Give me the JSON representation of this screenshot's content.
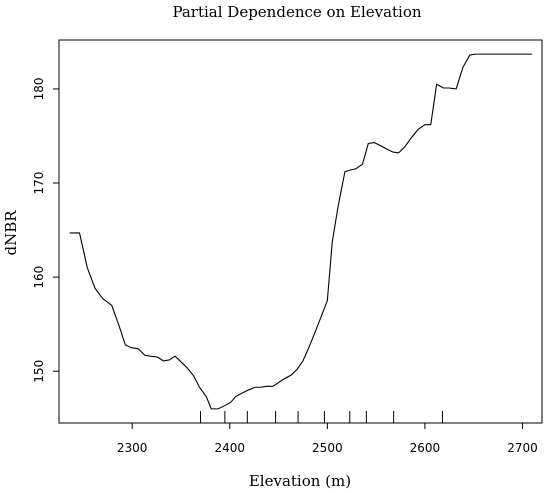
{
  "chart_data": {
    "type": "line",
    "title": "Partial Dependence on Elevation",
    "xlabel": "Elevation (m)",
    "ylabel": "dNBR",
    "xlim": [
      2225,
      2720
    ],
    "ylim": [
      144.5,
      185.2
    ],
    "xticks": [
      2300,
      2400,
      2500,
      2600,
      2700
    ],
    "yticks": [
      150,
      160,
      170,
      180
    ],
    "grid": false,
    "legend": "none",
    "series": [
      {
        "x": [
          2236,
          2246,
          2254,
          2262,
          2270,
          2279,
          2286,
          2293,
          2299,
          2306,
          2313,
          2319,
          2326,
          2332,
          2338,
          2344,
          2350,
          2356,
          2363,
          2369,
          2376,
          2381,
          2388,
          2394,
          2401,
          2406,
          2413,
          2419,
          2426,
          2432,
          2438,
          2444,
          2450,
          2456,
          2463,
          2469,
          2475,
          2481,
          2488,
          2494,
          2500,
          2505,
          2511,
          2518,
          2524,
          2529,
          2536,
          2542,
          2548,
          2554,
          2561,
          2567,
          2573,
          2579,
          2586,
          2593,
          2600,
          2606,
          2612,
          2619,
          2625,
          2632,
          2639,
          2646,
          2652,
          2659,
          2666,
          2672,
          2680,
          2686,
          2694,
          2701,
          2710
        ],
        "y": [
          164.7,
          164.7,
          161.0,
          158.8,
          157.7,
          157.0,
          155.0,
          152.8,
          152.5,
          152.4,
          151.7,
          151.6,
          151.5,
          151.1,
          151.2,
          151.6,
          151.0,
          150.4,
          149.5,
          148.3,
          147.3,
          146.0,
          146.0,
          146.3,
          146.7,
          147.3,
          147.7,
          148.0,
          148.3,
          148.3,
          148.4,
          148.4,
          148.8,
          149.2,
          149.6,
          150.2,
          151.1,
          152.5,
          154.3,
          155.9,
          157.5,
          163.7,
          167.5,
          171.2,
          171.4,
          171.5,
          172.0,
          174.2,
          174.3,
          174.0,
          173.6,
          173.3,
          173.2,
          173.8,
          174.8,
          175.7,
          176.2,
          176.2,
          180.5,
          180.1,
          180.1,
          180.0,
          182.3,
          183.6,
          183.7,
          183.7,
          183.7,
          183.7,
          183.7,
          183.7,
          183.7,
          183.7,
          183.7
        ]
      }
    ],
    "rug": [
      2370,
      2395,
      2418,
      2447,
      2470,
      2497,
      2523,
      2540,
      2568,
      2618
    ]
  }
}
